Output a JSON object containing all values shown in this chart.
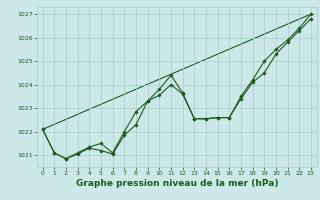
{
  "xlabel": "Graphe pression niveau de la mer (hPa)",
  "xlim": [
    -0.5,
    23.5
  ],
  "ylim": [
    1020.5,
    1027.3
  ],
  "yticks": [
    1021,
    1022,
    1023,
    1024,
    1025,
    1026,
    1027
  ],
  "xticks": [
    0,
    1,
    2,
    3,
    4,
    5,
    6,
    7,
    8,
    9,
    10,
    11,
    12,
    13,
    14,
    15,
    16,
    17,
    18,
    19,
    20,
    21,
    22,
    23
  ],
  "bg_color": "#cce8e8",
  "grid_color": "#aacccc",
  "line_color": "#1a5c1a",
  "line1_y": [
    1022.1,
    1021.1,
    1020.85,
    1021.05,
    1021.3,
    1021.2,
    1021.05,
    1021.85,
    1022.3,
    1023.3,
    1023.55,
    1024.0,
    1023.6,
    1022.55,
    1022.55,
    1022.6,
    1022.6,
    1023.4,
    1024.1,
    1024.5,
    1025.3,
    1025.8,
    1026.3,
    1026.8
  ],
  "line2_y": [
    1022.1,
    1021.1,
    1020.85,
    1021.1,
    1021.35,
    1021.5,
    1021.1,
    1022.0,
    1022.85,
    1023.3,
    1023.8,
    1024.4,
    1023.65,
    1022.55,
    1022.55,
    1022.6,
    1022.6,
    1023.5,
    1024.2,
    1025.0,
    1025.5,
    1025.9,
    1026.4,
    1027.0
  ],
  "line3_x": [
    0,
    23
  ],
  "line3_y": [
    1022.1,
    1027.0
  ],
  "marker": "D",
  "marker_size": 1.8,
  "line_width": 0.8,
  "tick_fontsize": 4.5,
  "xlabel_fontsize": 6.5,
  "xlabel_bold": true
}
